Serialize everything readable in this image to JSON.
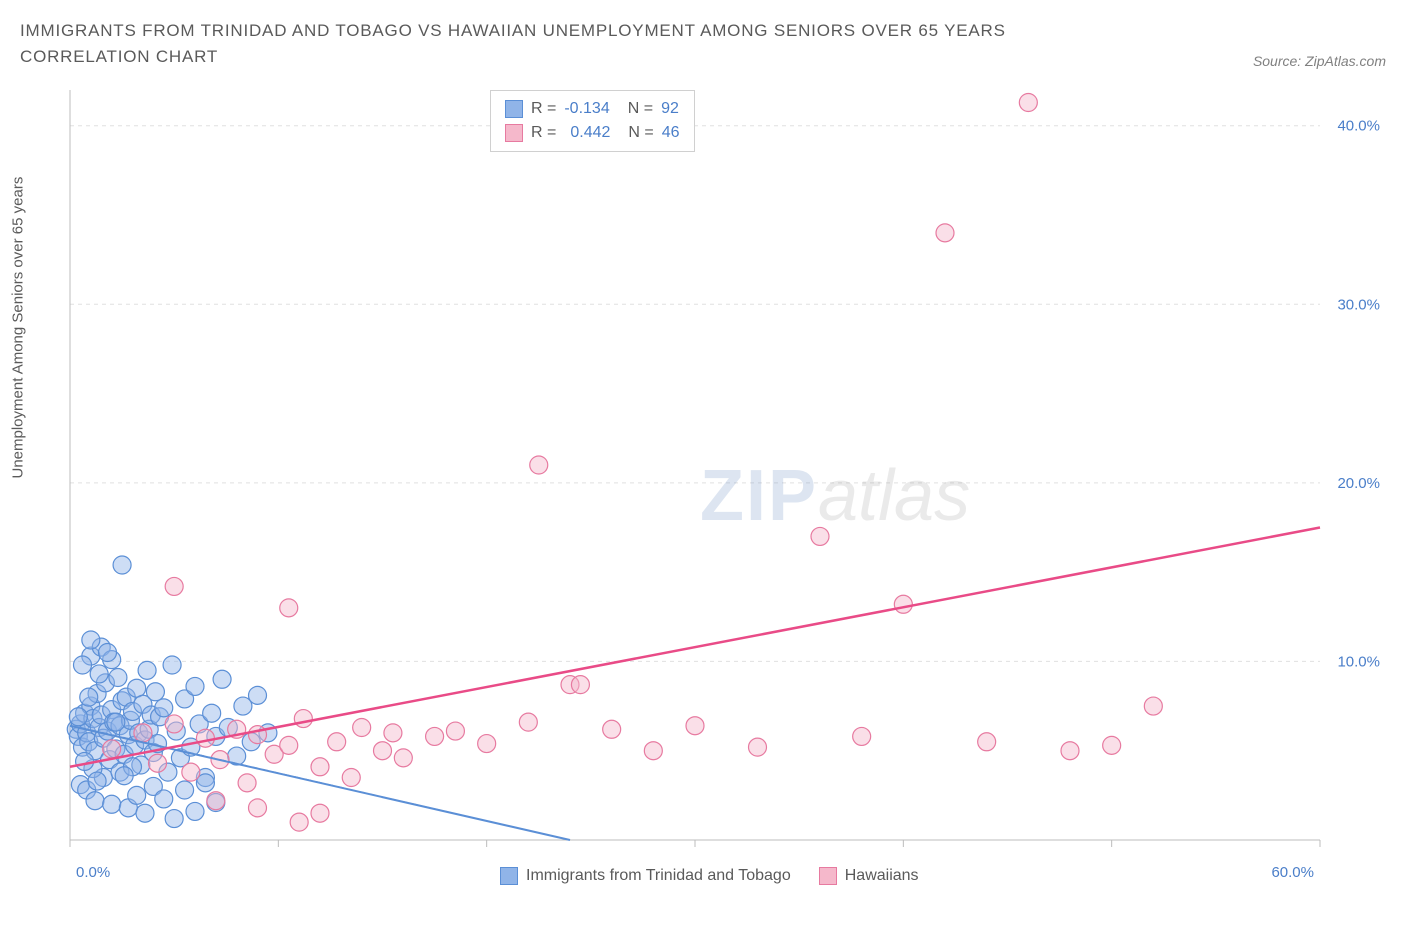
{
  "title": "IMMIGRANTS FROM TRINIDAD AND TOBAGO VS HAWAIIAN UNEMPLOYMENT AMONG SENIORS OVER 65 YEARS CORRELATION CHART",
  "source": "Source: ZipAtlas.com",
  "y_axis_label": "Unemployment Among Seniors over 65 years",
  "watermark": {
    "zip": "ZIP",
    "atlas": "atlas"
  },
  "chart": {
    "type": "scatter",
    "xlim": [
      0,
      60
    ],
    "ylim": [
      0,
      42
    ],
    "x_ticks": [
      0,
      10,
      20,
      30,
      40,
      50,
      60
    ],
    "y_ticks": [
      10,
      20,
      30,
      40
    ],
    "x_tick_labels": [
      "0.0%",
      "",
      "",
      "",
      "",
      "",
      "60.0%"
    ],
    "y_tick_labels": [
      "10.0%",
      "20.0%",
      "30.0%",
      "40.0%"
    ],
    "grid_color": "#e0e0e0",
    "background_color": "#ffffff",
    "marker_radius": 9,
    "marker_opacity": 0.45,
    "series": [
      {
        "name": "Immigrants from Trinidad and Tobago",
        "fill": "#90b4e8",
        "stroke": "#5b8fd6",
        "R": "-0.134",
        "N": "92",
        "trend": {
          "x1": 0,
          "y1": 6.4,
          "x2": 24,
          "y2": 0,
          "color": "#5b8fd6",
          "width": 2
        },
        "trend_dash_ext": {
          "x1": 0.5,
          "y1": 6.3,
          "x2": 24,
          "y2": 0
        },
        "points": [
          [
            0.3,
            6.2
          ],
          [
            0.4,
            5.8
          ],
          [
            0.5,
            6.5
          ],
          [
            0.6,
            5.2
          ],
          [
            0.7,
            7.1
          ],
          [
            0.8,
            6.0
          ],
          [
            0.9,
            5.5
          ],
          [
            1.0,
            7.5
          ],
          [
            1.1,
            6.8
          ],
          [
            1.2,
            5.0
          ],
          [
            1.3,
            8.2
          ],
          [
            1.4,
            6.3
          ],
          [
            1.5,
            7.0
          ],
          [
            1.6,
            5.7
          ],
          [
            1.7,
            8.8
          ],
          [
            1.8,
            6.1
          ],
          [
            1.9,
            4.5
          ],
          [
            2.0,
            7.3
          ],
          [
            2.1,
            6.6
          ],
          [
            2.2,
            5.1
          ],
          [
            2.3,
            9.1
          ],
          [
            2.4,
            6.4
          ],
          [
            2.5,
            7.8
          ],
          [
            2.6,
            4.8
          ],
          [
            2.7,
            8.0
          ],
          [
            2.8,
            5.9
          ],
          [
            2.9,
            6.7
          ],
          [
            3.0,
            7.2
          ],
          [
            3.1,
            5.3
          ],
          [
            3.2,
            8.5
          ],
          [
            3.3,
            6.0
          ],
          [
            3.4,
            4.2
          ],
          [
            3.5,
            7.6
          ],
          [
            3.6,
            5.6
          ],
          [
            3.7,
            9.5
          ],
          [
            3.8,
            6.2
          ],
          [
            3.9,
            7.0
          ],
          [
            4.0,
            4.9
          ],
          [
            4.1,
            8.3
          ],
          [
            4.2,
            5.4
          ],
          [
            4.3,
            6.9
          ],
          [
            4.5,
            7.4
          ],
          [
            4.7,
            3.8
          ],
          [
            4.9,
            9.8
          ],
          [
            5.1,
            6.1
          ],
          [
            5.3,
            4.6
          ],
          [
            5.5,
            7.9
          ],
          [
            5.8,
            5.2
          ],
          [
            6.0,
            8.6
          ],
          [
            6.2,
            6.5
          ],
          [
            6.5,
            3.5
          ],
          [
            6.8,
            7.1
          ],
          [
            7.0,
            5.8
          ],
          [
            7.3,
            9.0
          ],
          [
            7.6,
            6.3
          ],
          [
            8.0,
            4.7
          ],
          [
            8.3,
            7.5
          ],
          [
            8.7,
            5.5
          ],
          [
            9.0,
            8.1
          ],
          [
            9.5,
            6.0
          ],
          [
            2.5,
            15.4
          ],
          [
            1.0,
            10.3
          ],
          [
            1.5,
            10.8
          ],
          [
            2.0,
            10.1
          ],
          [
            0.5,
            3.1
          ],
          [
            0.8,
            2.8
          ],
          [
            1.2,
            2.2
          ],
          [
            1.6,
            3.5
          ],
          [
            2.0,
            2.0
          ],
          [
            2.4,
            3.8
          ],
          [
            2.8,
            1.8
          ],
          [
            3.2,
            2.5
          ],
          [
            3.6,
            1.5
          ],
          [
            4.0,
            3.0
          ],
          [
            4.5,
            2.3
          ],
          [
            5.0,
            1.2
          ],
          [
            5.5,
            2.8
          ],
          [
            6.0,
            1.6
          ],
          [
            6.5,
            3.2
          ],
          [
            7.0,
            2.1
          ],
          [
            1.0,
            11.2
          ],
          [
            0.6,
            9.8
          ],
          [
            1.4,
            9.3
          ],
          [
            0.9,
            8.0
          ],
          [
            1.8,
            10.5
          ],
          [
            1.1,
            4.0
          ],
          [
            0.4,
            6.9
          ],
          [
            2.2,
            6.6
          ],
          [
            1.3,
            3.3
          ],
          [
            0.7,
            4.4
          ],
          [
            3.0,
            4.1
          ],
          [
            2.6,
            3.6
          ]
        ]
      },
      {
        "name": "Hawaiians",
        "fill": "#f5b8cb",
        "stroke": "#e77aa0",
        "R": "0.442",
        "N": "46",
        "trend": {
          "x1": 0,
          "y1": 4.1,
          "x2": 60,
          "y2": 17.5,
          "color": "#e94b87",
          "width": 2.5
        },
        "points": [
          [
            2.0,
            5.1
          ],
          [
            3.5,
            6.0
          ],
          [
            4.2,
            4.3
          ],
          [
            5.0,
            6.5
          ],
          [
            5.8,
            3.8
          ],
          [
            6.5,
            5.7
          ],
          [
            7.2,
            4.5
          ],
          [
            8.0,
            6.2
          ],
          [
            8.5,
            3.2
          ],
          [
            9.0,
            5.9
          ],
          [
            9.8,
            4.8
          ],
          [
            10.5,
            5.3
          ],
          [
            11.2,
            6.8
          ],
          [
            12.0,
            4.1
          ],
          [
            12.8,
            5.5
          ],
          [
            13.5,
            3.5
          ],
          [
            14.0,
            6.3
          ],
          [
            15.0,
            5.0
          ],
          [
            16.0,
            4.6
          ],
          [
            17.5,
            5.8
          ],
          [
            18.5,
            6.1
          ],
          [
            20.0,
            5.4
          ],
          [
            22.0,
            6.6
          ],
          [
            24.0,
            8.7
          ],
          [
            26.0,
            6.2
          ],
          [
            28.0,
            5.0
          ],
          [
            30.0,
            6.4
          ],
          [
            33.0,
            5.2
          ],
          [
            36.0,
            17.0
          ],
          [
            38.0,
            5.8
          ],
          [
            40.0,
            13.2
          ],
          [
            42.0,
            34.0
          ],
          [
            44.0,
            5.5
          ],
          [
            46.0,
            41.3
          ],
          [
            48.0,
            5.0
          ],
          [
            50.0,
            5.3
          ],
          [
            52.0,
            7.5
          ],
          [
            5.0,
            14.2
          ],
          [
            10.5,
            13.0
          ],
          [
            12.0,
            1.5
          ],
          [
            9.0,
            1.8
          ],
          [
            7.0,
            2.2
          ],
          [
            11.0,
            1.0
          ],
          [
            24.5,
            8.7
          ],
          [
            22.5,
            21.0
          ],
          [
            15.5,
            6.0
          ]
        ]
      }
    ]
  },
  "legend_bottom": [
    {
      "swatch_fill": "#90b4e8",
      "swatch_stroke": "#5b8fd6",
      "label": "Immigrants from Trinidad and Tobago"
    },
    {
      "swatch_fill": "#f5b8cb",
      "swatch_stroke": "#e77aa0",
      "label": "Hawaiians"
    }
  ]
}
